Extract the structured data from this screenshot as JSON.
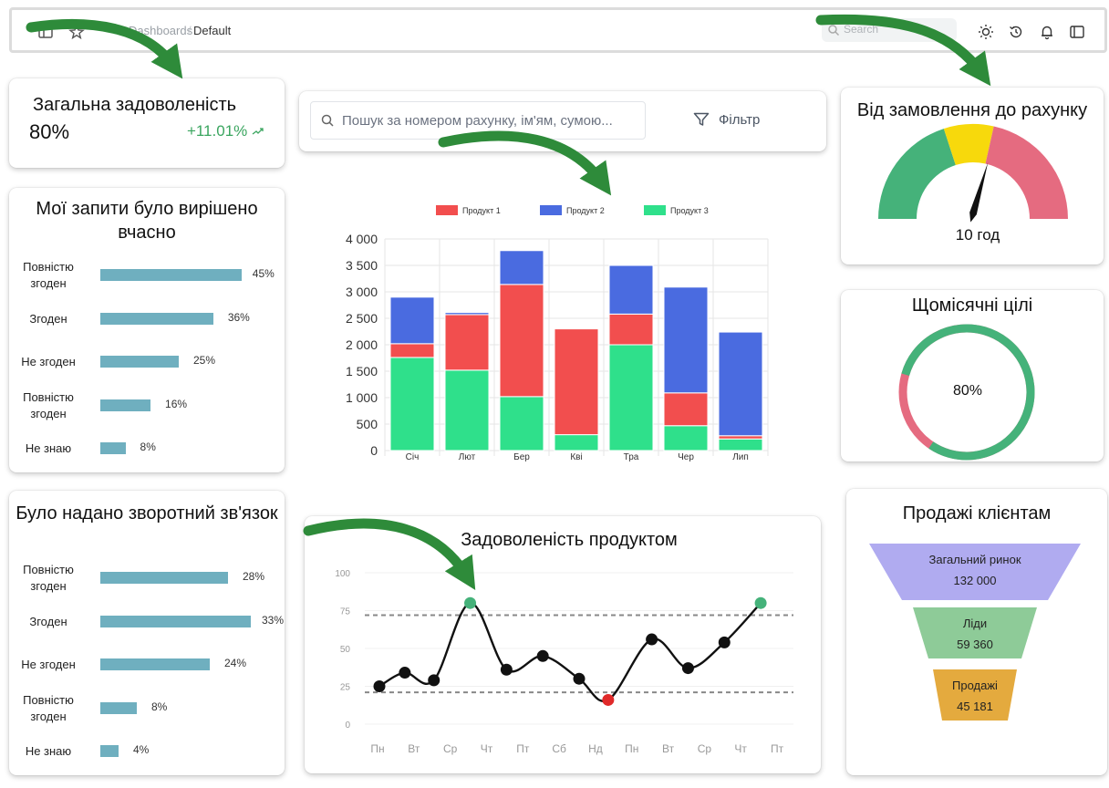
{
  "topbar": {
    "breadcrumb_parent": "Dashboards",
    "breadcrumb_separator": "/",
    "breadcrumb_current": "Default",
    "search_placeholder": "Search"
  },
  "satisfaction": {
    "title": "Загальна задоволеність",
    "value": "80%",
    "change": "+11.01%"
  },
  "requests": {
    "title": "Мої запити було вирішено вчасно",
    "items": [
      {
        "label": "Повністю згоден",
        "value": 45,
        "pct": "45%"
      },
      {
        "label": "Згоден",
        "value": 36,
        "pct": "36%"
      },
      {
        "label": "Не згоден",
        "value": 25,
        "pct": "25%"
      },
      {
        "label": "Повністю згоден",
        "value": 16,
        "pct": "16%"
      },
      {
        "label": "Не знаю",
        "value": 8,
        "pct": "8%"
      }
    ]
  },
  "feedback": {
    "title": "Було надано зворотний зв'язок",
    "items": [
      {
        "label": "Повністю згоден",
        "value": 28,
        "pct": "28%"
      },
      {
        "label": "Згоден",
        "value": 33,
        "pct": "33%"
      },
      {
        "label": "Не згоден",
        "value": 24,
        "pct": "24%"
      },
      {
        "label": "Повністю згоден",
        "value": 8,
        "pct": "8%"
      },
      {
        "label": "Не знаю",
        "value": 4,
        "pct": "4%"
      }
    ]
  },
  "invoice_search": {
    "placeholder": "Пошук за номером рахунку, ім'ям, сумою...",
    "filter_label": "Фільтр"
  },
  "chart_data": [
    {
      "type": "bar",
      "stacked": true,
      "categories": [
        "Січ",
        "Лют",
        "Бер",
        "Кві",
        "Тра",
        "Чер",
        "Лип"
      ],
      "series": [
        {
          "name": "Продукт 1",
          "color": "#f24e4e",
          "values": [
            260,
            1050,
            2120,
            2000,
            580,
            620,
            60
          ]
        },
        {
          "name": "Продукт 2",
          "color": "#4a6be0",
          "values": [
            880,
            40,
            640,
            0,
            920,
            2000,
            1960
          ]
        },
        {
          "name": "Продукт 3",
          "color": "#2fe08b",
          "values": [
            1760,
            1520,
            1020,
            300,
            2000,
            470,
            220
          ]
        }
      ],
      "ylim": [
        0,
        4000
      ],
      "yticks": [
        "0",
        "500",
        "1 000",
        "1 500",
        "2 000",
        "2 500",
        "3 000",
        "3 500",
        "4 000"
      ],
      "legend": "top"
    },
    {
      "type": "line",
      "title": "Задоволеність продуктом",
      "x": [
        "Пн",
        "Вт",
        "Ср",
        "Чт",
        "Пт",
        "Сб",
        "Нд",
        "Пн",
        "Вт",
        "Ср",
        "Чт",
        "Пт"
      ],
      "points": [
        {
          "x": 0.0,
          "y": 25,
          "kind": "normal"
        },
        {
          "x": 0.7,
          "y": 34,
          "kind": "normal"
        },
        {
          "x": 1.5,
          "y": 29,
          "kind": "normal"
        },
        {
          "x": 2.5,
          "y": 80,
          "kind": "high"
        },
        {
          "x": 3.5,
          "y": 36,
          "kind": "normal"
        },
        {
          "x": 4.5,
          "y": 45,
          "kind": "normal"
        },
        {
          "x": 5.5,
          "y": 30,
          "kind": "normal"
        },
        {
          "x": 6.3,
          "y": 16,
          "kind": "low"
        },
        {
          "x": 7.5,
          "y": 56,
          "kind": "normal"
        },
        {
          "x": 8.5,
          "y": 37,
          "kind": "normal"
        },
        {
          "x": 9.5,
          "y": 54,
          "kind": "normal"
        },
        {
          "x": 10.5,
          "y": 80,
          "kind": "high"
        }
      ],
      "ylim": [
        0,
        100
      ],
      "yticks": [
        "0",
        "25",
        "50",
        "75",
        "100"
      ],
      "thresholds": [
        72,
        21
      ]
    },
    {
      "type": "gauge",
      "title": "Від замовлення до рахунку",
      "value_label": "10 год",
      "segments": [
        {
          "color": "#45b27a",
          "from": 0,
          "to": 0.4
        },
        {
          "color": "#f7d90c",
          "from": 0.4,
          "to": 0.57
        },
        {
          "color": "#e56b80",
          "from": 0.57,
          "to": 1.0
        }
      ],
      "needle_fraction": 0.59
    },
    {
      "type": "donut",
      "title": "Щомісячні цілі",
      "value": 80,
      "value_label": "80%",
      "colors": [
        "#45b27a",
        "#e56b80"
      ]
    },
    {
      "type": "funnel",
      "title": "Продажі клієнтам",
      "stages": [
        {
          "label": "Загальний ринок",
          "value": "132 000",
          "color": "#b0abf0"
        },
        {
          "label": "Ліди",
          "value": "59 360",
          "color": "#8ecb98"
        },
        {
          "label": "Продажі",
          "value": "45 181",
          "color": "#e4aa3e"
        }
      ]
    }
  ]
}
